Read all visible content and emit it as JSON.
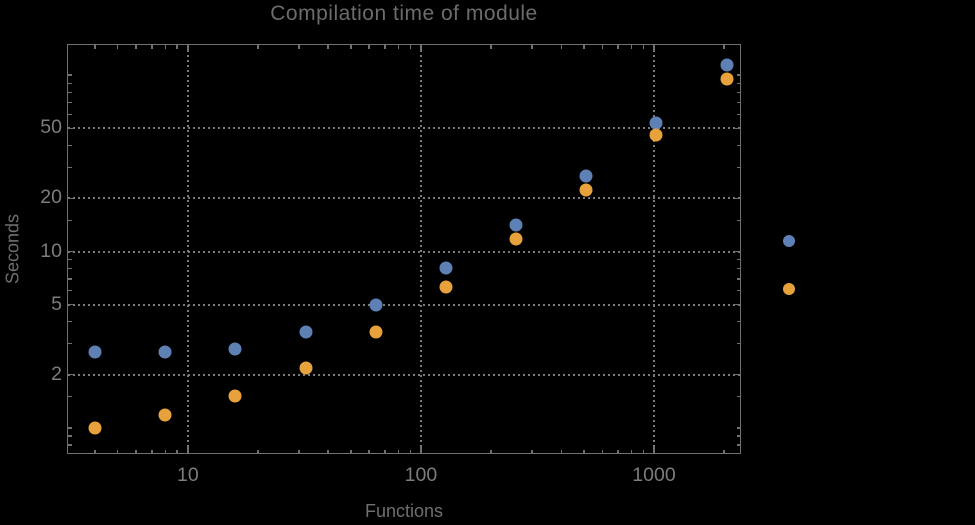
{
  "title": "Compilation time of module",
  "colors": {
    "background": "#000000",
    "frame": "#707070",
    "grid": "#7a7a7a",
    "title_text": "#6c6c6c",
    "axis_label_text": "#6f6f6f",
    "tick_label_text": "#7d7d7d",
    "series_blue": "#5e81b5",
    "series_orange": "#e7a23c"
  },
  "chart_data": {
    "type": "scatter",
    "title": "Compilation time of module",
    "xlabel": "Functions",
    "ylabel": "Seconds",
    "x_scale": "log",
    "y_scale": "log",
    "x_range": [
      3.03,
      2362
    ],
    "y_range": [
      0.71,
      150.4
    ],
    "grid": "dotted gridlines at labeled major ticks only",
    "legend_position": "right of frame, markers only (no visible label text)",
    "x": [
      4,
      8,
      16,
      32,
      64,
      128,
      256,
      512,
      1024,
      2048
    ],
    "series": [
      {
        "name": "series-1-blue",
        "color": "#5e81b5",
        "values": [
          2.7,
          2.7,
          2.8,
          3.5,
          5.0,
          8.1,
          14.1,
          26.8,
          53.5,
          115
        ]
      },
      {
        "name": "series-2-orange",
        "color": "#e7a23c",
        "values": [
          1.0,
          1.18,
          1.52,
          2.17,
          3.5,
          6.3,
          11.7,
          22.2,
          45.7,
          95.8
        ]
      }
    ],
    "x_axis": {
      "major_ticks": [
        {
          "v": 10,
          "label": "10"
        },
        {
          "v": 100,
          "label": "100"
        },
        {
          "v": 1000,
          "label": "1000"
        }
      ],
      "minor_ticks": [
        4,
        5,
        6,
        7,
        8,
        9,
        20,
        30,
        40,
        50,
        60,
        70,
        80,
        90,
        200,
        300,
        400,
        500,
        600,
        700,
        800,
        900,
        2000
      ]
    },
    "y_axis": {
      "major_ticks": [
        {
          "v": 50,
          "label": "50"
        },
        {
          "v": 20,
          "label": "20"
        },
        {
          "v": 10,
          "label": "10"
        },
        {
          "v": 5,
          "label": "5"
        },
        {
          "v": 2,
          "label": "2"
        }
      ],
      "minor_ticks": [
        100,
        90,
        80,
        70,
        60,
        40,
        30,
        15,
        9,
        8,
        7,
        6,
        4,
        3,
        1.5,
        1,
        0.9,
        0.8
      ]
    },
    "legend_markers": [
      {
        "series": "series-1-blue",
        "color": "#5e81b5"
      },
      {
        "series": "series-2-orange",
        "color": "#e7a23c"
      }
    ]
  }
}
